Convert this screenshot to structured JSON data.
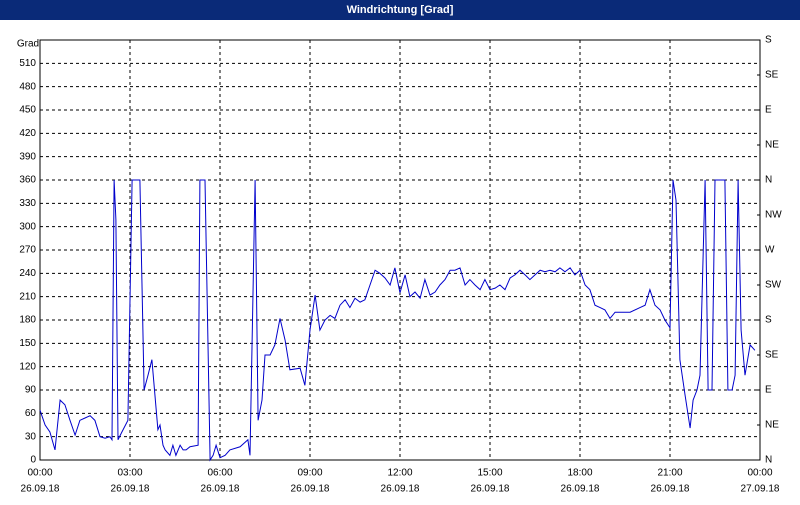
{
  "chart_data": {
    "type": "line",
    "title": "Windrichtung [Grad]",
    "y_label": "Grad",
    "color": "#0000cc",
    "grid": true,
    "xlim": [
      0,
      24
    ],
    "xticks": [
      {
        "value": 0,
        "label": "00:00",
        "date": "26.09.18"
      },
      {
        "value": 3,
        "label": "03:00",
        "date": "26.09.18"
      },
      {
        "value": 6,
        "label": "06:00",
        "date": "26.09.18"
      },
      {
        "value": 9,
        "label": "09:00",
        "date": "26.09.18"
      },
      {
        "value": 12,
        "label": "12:00",
        "date": "26.09.18"
      },
      {
        "value": 15,
        "label": "15:00",
        "date": "26.09.18"
      },
      {
        "value": 18,
        "label": "18:00",
        "date": "26.09.18"
      },
      {
        "value": 21,
        "label": "21:00",
        "date": "26.09.18"
      },
      {
        "value": 24,
        "label": "00:00",
        "date": "27.09.18"
      }
    ],
    "ylim": [
      0,
      540
    ],
    "yticks": [
      0,
      30,
      60,
      90,
      120,
      150,
      180,
      210,
      240,
      270,
      300,
      330,
      360,
      390,
      420,
      450,
      480,
      510
    ],
    "y2lim": [
      0,
      540
    ],
    "y2ticks": [
      {
        "value": 0,
        "label": "N"
      },
      {
        "value": 45,
        "label": "NE"
      },
      {
        "value": 90,
        "label": "E"
      },
      {
        "value": 135,
        "label": "SE"
      },
      {
        "value": 180,
        "label": "S"
      },
      {
        "value": 225,
        "label": "SW"
      },
      {
        "value": 270,
        "label": "W"
      },
      {
        "value": 315,
        "label": "NW"
      },
      {
        "value": 360,
        "label": "N"
      },
      {
        "value": 405,
        "label": "NE"
      },
      {
        "value": 450,
        "label": "E"
      },
      {
        "value": 495,
        "label": "SE"
      },
      {
        "value": 540,
        "label": "S"
      }
    ],
    "x": [
      0.0,
      0.17,
      0.33,
      0.5,
      0.67,
      0.83,
      1.0,
      1.17,
      1.33,
      1.5,
      1.67,
      1.83,
      2.0,
      2.17,
      2.33,
      2.4,
      2.47,
      2.53,
      2.6,
      2.73,
      2.93,
      3.07,
      3.33,
      3.47,
      3.6,
      3.73,
      3.83,
      3.93,
      4.0,
      4.1,
      4.17,
      4.33,
      4.43,
      4.53,
      4.67,
      4.77,
      4.87,
      5.0,
      5.27,
      5.33,
      5.5,
      5.67,
      5.77,
      5.87,
      6.0,
      6.17,
      6.33,
      6.67,
      6.93,
      7.0,
      7.17,
      7.27,
      7.4,
      7.5,
      7.67,
      7.83,
      8.0,
      8.17,
      8.33,
      8.67,
      8.83,
      9.0,
      9.17,
      9.33,
      9.5,
      9.67,
      9.83,
      10.0,
      10.17,
      10.33,
      10.5,
      10.67,
      10.83,
      11.0,
      11.17,
      11.33,
      11.5,
      11.67,
      11.83,
      12.0,
      12.17,
      12.33,
      12.5,
      12.67,
      12.83,
      13.0,
      13.17,
      13.33,
      13.5,
      13.67,
      13.83,
      14.0,
      14.17,
      14.33,
      14.5,
      14.67,
      14.83,
      15.0,
      15.17,
      15.33,
      15.5,
      15.67,
      15.83,
      16.0,
      16.17,
      16.33,
      16.5,
      16.67,
      16.83,
      17.0,
      17.17,
      17.33,
      17.5,
      17.67,
      17.83,
      18.0,
      18.17,
      18.33,
      18.5,
      18.67,
      18.83,
      19.0,
      19.17,
      19.67,
      20.0,
      20.17,
      20.33,
      20.5,
      20.67,
      20.83,
      21.0,
      21.1,
      21.2,
      21.33,
      21.5,
      21.67,
      21.77,
      21.9,
      22.0,
      22.17,
      22.27,
      22.4,
      22.5,
      22.83,
      22.93,
      23.07,
      23.17,
      23.27,
      23.37,
      23.5,
      23.67,
      23.83
    ],
    "values": [
      64,
      45,
      36,
      13,
      77,
      71,
      51,
      32,
      51,
      54,
      57,
      51,
      30,
      28,
      30,
      26,
      360,
      309,
      26,
      36,
      51,
      360,
      360,
      90,
      109,
      129,
      84,
      39,
      45,
      19,
      13,
      6,
      19,
      6,
      19,
      13,
      13,
      17,
      19,
      360,
      360,
      0,
      6,
      19,
      3,
      6,
      13,
      17,
      26,
      6,
      360,
      51,
      77,
      135,
      135,
      148,
      182,
      154,
      116,
      118,
      96,
      167,
      212,
      167,
      180,
      186,
      182,
      199,
      206,
      196,
      208,
      203,
      206,
      225,
      244,
      240,
      234,
      225,
      247,
      215,
      238,
      210,
      216,
      208,
      232,
      212,
      216,
      225,
      232,
      244,
      244,
      247,
      225,
      232,
      225,
      219,
      232,
      219,
      221,
      225,
      219,
      234,
      238,
      244,
      238,
      232,
      238,
      244,
      242,
      244,
      242,
      247,
      242,
      247,
      238,
      244,
      225,
      219,
      199,
      196,
      193,
      182,
      190,
      190,
      196,
      199,
      219,
      199,
      193,
      180,
      170,
      360,
      334,
      129,
      84,
      41,
      77,
      90,
      109,
      360,
      90,
      90,
      360,
      360,
      90,
      90,
      109,
      360,
      167,
      109,
      148,
      141
    ]
  }
}
